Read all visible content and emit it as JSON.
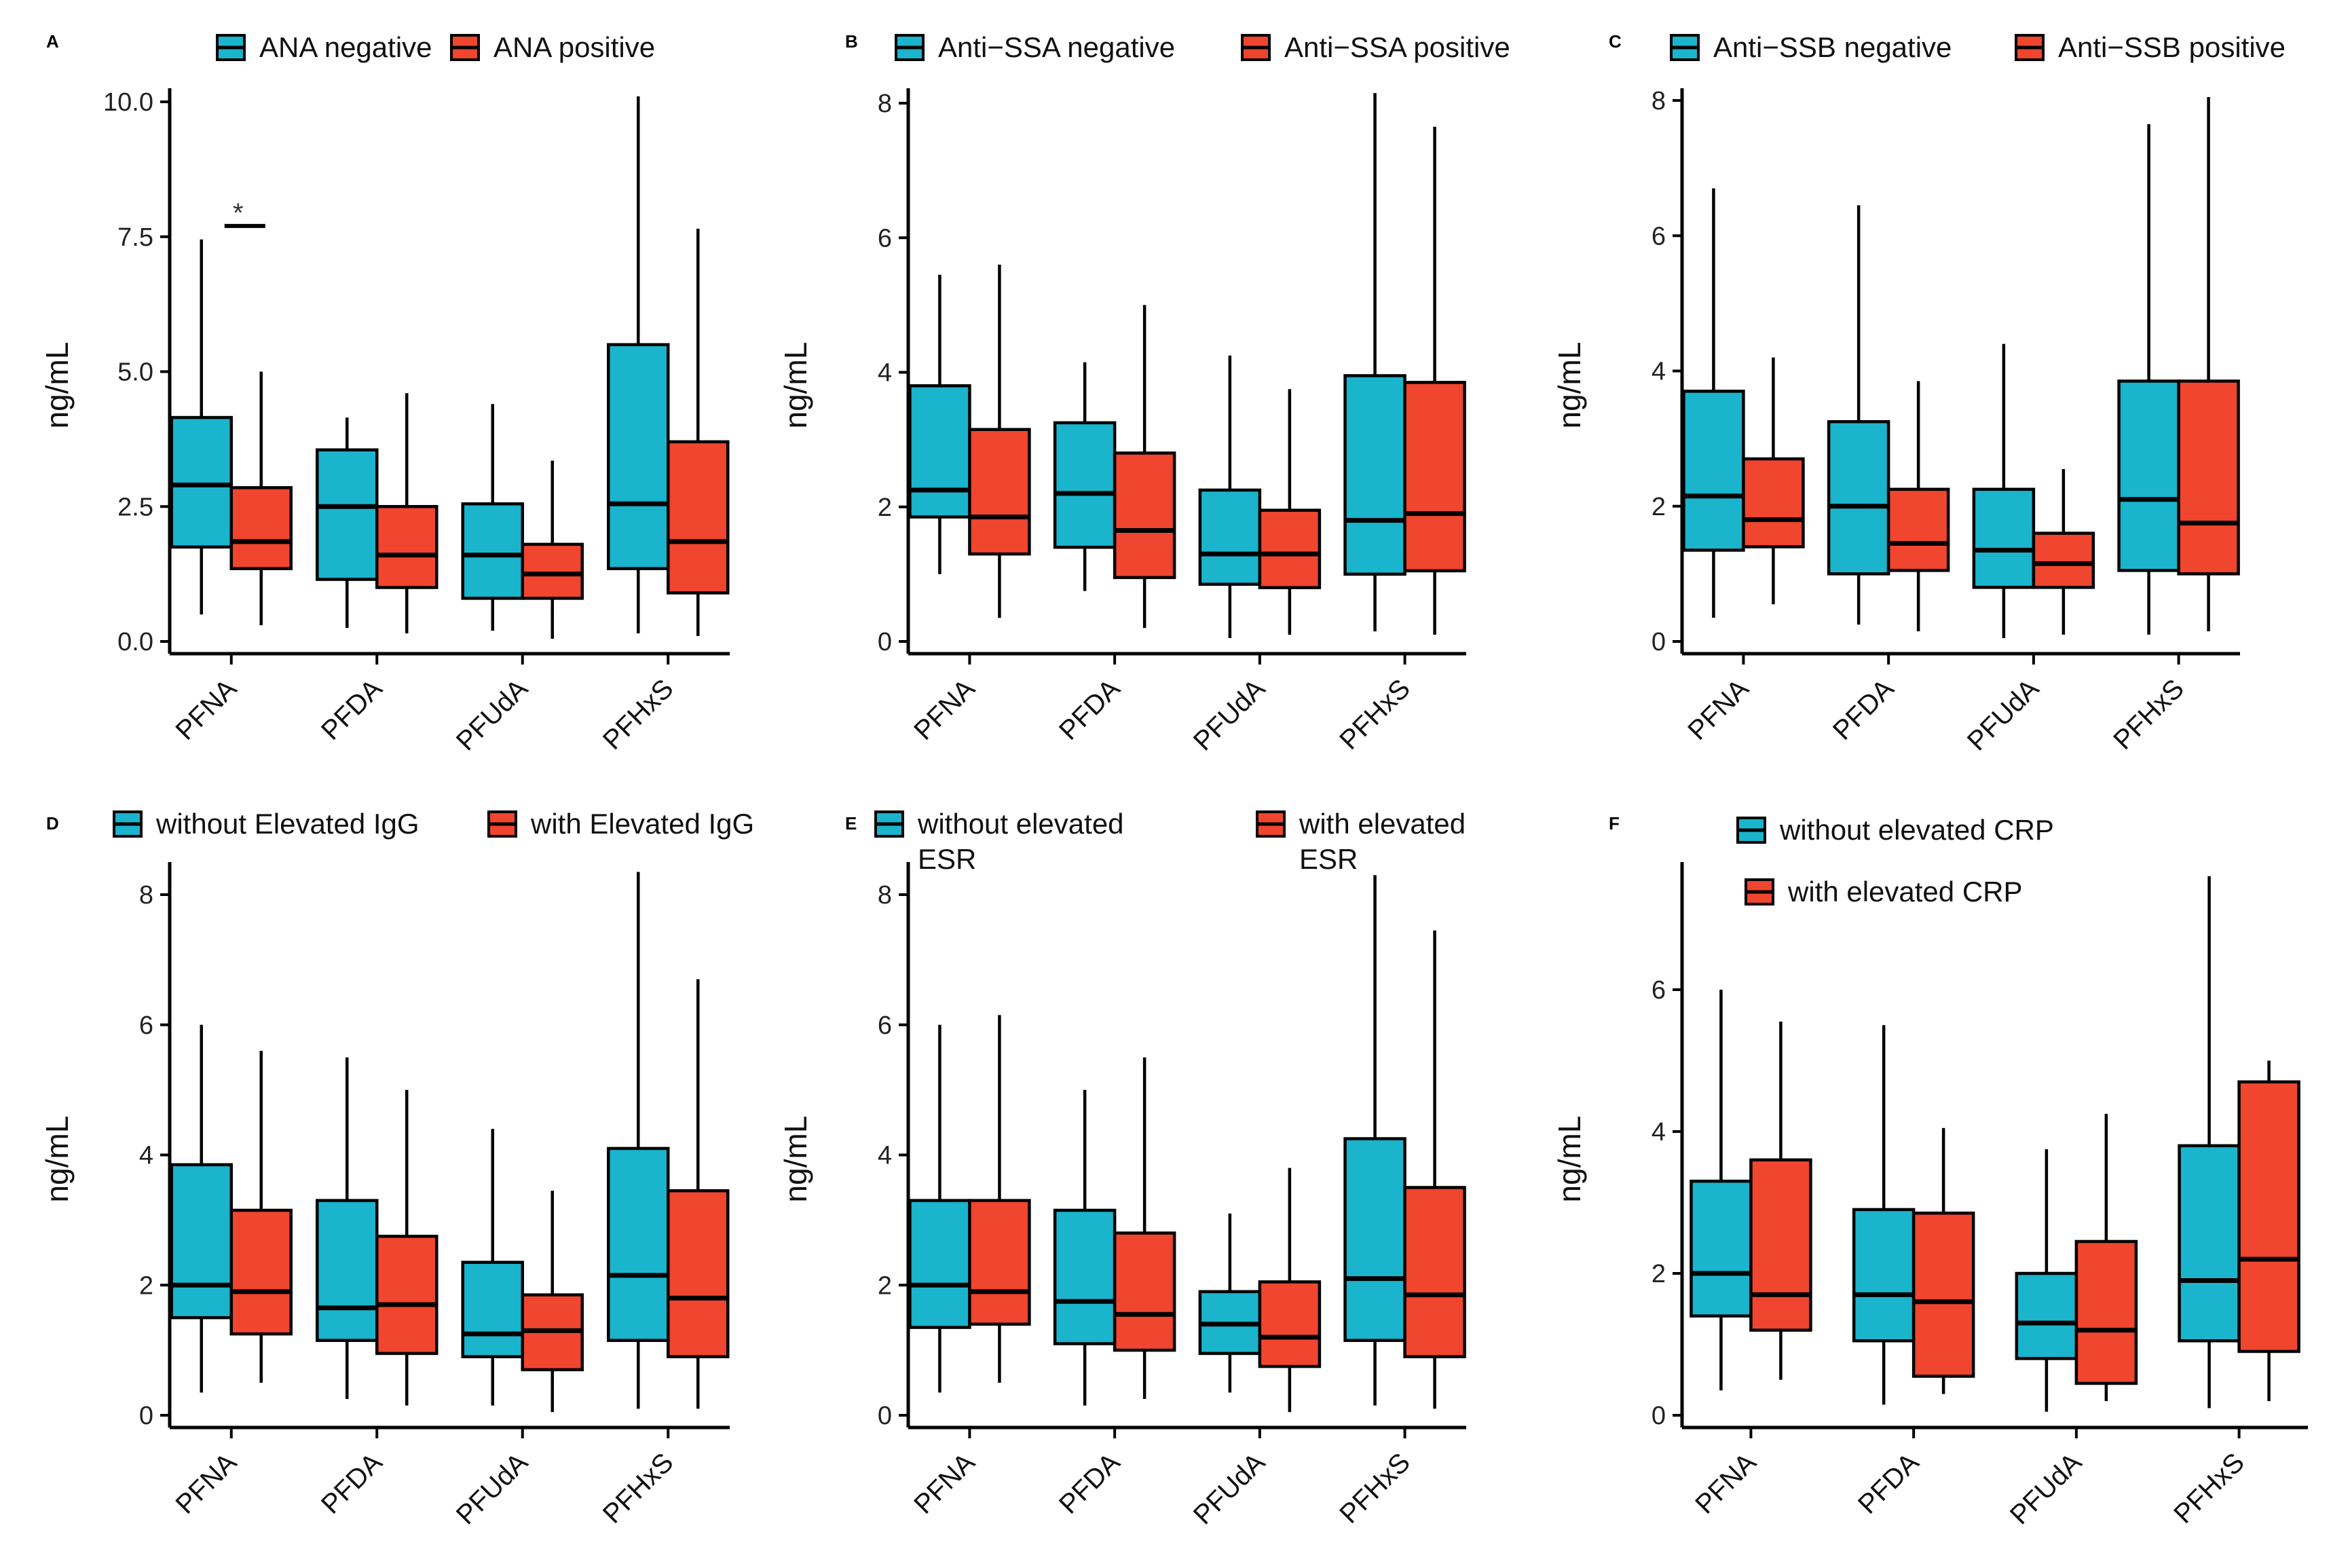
{
  "colors": {
    "negative": "#1ab4cc",
    "positive": "#f0452e"
  },
  "chart_data": [
    {
      "panel": "A",
      "type": "box",
      "ylabel": "ng/mL",
      "ylim": [
        0,
        10.5
      ],
      "yticks": [
        "0.0",
        "2.5",
        "5.0",
        "7.5",
        "10.0"
      ],
      "ytick_values": [
        0,
        2.5,
        5.0,
        7.5,
        10.0
      ],
      "categories": [
        "PFNA",
        "PFDA",
        "PFUdA",
        "PFHxS"
      ],
      "legend": [
        "ANA negative",
        "ANA positive"
      ],
      "legend_layout": "row",
      "significance": {
        "category": "PFNA",
        "label": "*",
        "value": 7.7
      },
      "series": [
        {
          "name": "ANA negative",
          "boxes": [
            {
              "min": 0.5,
              "q1": 1.75,
              "median": 2.9,
              "q3": 4.15,
              "max": 7.45
            },
            {
              "min": 0.25,
              "q1": 1.15,
              "median": 2.5,
              "q3": 3.55,
              "max": 4.15
            },
            {
              "min": 0.2,
              "q1": 0.8,
              "median": 1.6,
              "q3": 2.55,
              "max": 4.4
            },
            {
              "min": 0.15,
              "q1": 1.35,
              "median": 2.55,
              "q3": 5.5,
              "max": 10.1
            }
          ]
        },
        {
          "name": "ANA positive",
          "boxes": [
            {
              "min": 0.3,
              "q1": 1.35,
              "median": 1.85,
              "q3": 2.85,
              "max": 5.0
            },
            {
              "min": 0.15,
              "q1": 1.0,
              "median": 1.6,
              "q3": 2.5,
              "max": 4.6
            },
            {
              "min": 0.05,
              "q1": 0.8,
              "median": 1.25,
              "q3": 1.8,
              "max": 3.35
            },
            {
              "min": 0.1,
              "q1": 0.9,
              "median": 1.85,
              "q3": 3.7,
              "max": 7.65
            }
          ]
        }
      ]
    },
    {
      "panel": "B",
      "type": "box",
      "ylabel": "ng/mL",
      "ylim": [
        0,
        8.6
      ],
      "yticks": [
        "0",
        "2",
        "4",
        "6",
        "8"
      ],
      "ytick_values": [
        0,
        2,
        4,
        6,
        8
      ],
      "categories": [
        "PFNA",
        "PFDA",
        "PFUdA",
        "PFHxS"
      ],
      "legend": [
        "Anti−SSA negative",
        "Anti−SSA positive"
      ],
      "legend_layout": "row",
      "series": [
        {
          "name": "Anti−SSA negative",
          "boxes": [
            {
              "min": 1.0,
              "q1": 1.85,
              "median": 2.25,
              "q3": 3.8,
              "max": 5.45
            },
            {
              "min": 0.75,
              "q1": 1.4,
              "median": 2.2,
              "q3": 3.25,
              "max": 4.15
            },
            {
              "min": 0.05,
              "q1": 0.85,
              "median": 1.3,
              "q3": 2.25,
              "max": 4.25
            },
            {
              "min": 0.15,
              "q1": 1.0,
              "median": 1.8,
              "q3": 3.95,
              "max": 8.15
            }
          ]
        },
        {
          "name": "Anti−SSA positive",
          "boxes": [
            {
              "min": 0.35,
              "q1": 1.3,
              "median": 1.85,
              "q3": 3.15,
              "max": 5.6
            },
            {
              "min": 0.2,
              "q1": 0.95,
              "median": 1.65,
              "q3": 2.8,
              "max": 5.0
            },
            {
              "min": 0.1,
              "q1": 0.8,
              "median": 1.3,
              "q3": 1.95,
              "max": 3.75
            },
            {
              "min": 0.1,
              "q1": 1.05,
              "median": 1.9,
              "q3": 3.85,
              "max": 7.65
            }
          ]
        }
      ]
    },
    {
      "panel": "C",
      "type": "box",
      "ylabel": "ng/mL",
      "ylim": [
        0,
        8.4
      ],
      "yticks": [
        "0",
        "2",
        "4",
        "6",
        "8"
      ],
      "ytick_values": [
        0,
        2,
        4,
        6,
        8
      ],
      "categories": [
        "PFNA",
        "PFDA",
        "PFUdA",
        "PFHxS"
      ],
      "legend": [
        "Anti−SSB negative",
        "Anti−SSB positive"
      ],
      "legend_layout": "row",
      "series": [
        {
          "name": "Anti−SSB negative",
          "boxes": [
            {
              "min": 0.35,
              "q1": 1.35,
              "median": 2.15,
              "q3": 3.7,
              "max": 6.7
            },
            {
              "min": 0.25,
              "q1": 1.0,
              "median": 2.0,
              "q3": 3.25,
              "max": 6.45
            },
            {
              "min": 0.05,
              "q1": 0.8,
              "median": 1.35,
              "q3": 2.25,
              "max": 4.4
            },
            {
              "min": 0.1,
              "q1": 1.05,
              "median": 2.1,
              "q3": 3.85,
              "max": 7.65
            }
          ]
        },
        {
          "name": "Anti−SSB positive",
          "boxes": [
            {
              "min": 0.55,
              "q1": 1.4,
              "median": 1.8,
              "q3": 2.7,
              "max": 4.2
            },
            {
              "min": 0.15,
              "q1": 1.05,
              "median": 1.45,
              "q3": 2.25,
              "max": 3.85
            },
            {
              "min": 0.1,
              "q1": 0.8,
              "median": 1.15,
              "q3": 1.6,
              "max": 2.55
            },
            {
              "min": 0.15,
              "q1": 1.0,
              "median": 1.75,
              "q3": 3.85,
              "max": 8.05
            }
          ]
        }
      ]
    },
    {
      "panel": "D",
      "type": "box",
      "ylabel": "ng/mL",
      "ylim": [
        0,
        8.6
      ],
      "yticks": [
        "0",
        "2",
        "4",
        "6",
        "8"
      ],
      "ytick_values": [
        0,
        2,
        4,
        6,
        8
      ],
      "categories": [
        "PFNA",
        "PFDA",
        "PFUdA",
        "PFHxS"
      ],
      "legend": [
        "without Elevated IgG",
        "with Elevated IgG"
      ],
      "legend_layout": "row",
      "series": [
        {
          "name": "without Elevated IgG",
          "boxes": [
            {
              "min": 0.35,
              "q1": 1.5,
              "median": 2.0,
              "q3": 3.85,
              "max": 6.0
            },
            {
              "min": 0.25,
              "q1": 1.15,
              "median": 1.65,
              "q3": 3.3,
              "max": 5.5
            },
            {
              "min": 0.15,
              "q1": 0.9,
              "median": 1.25,
              "q3": 2.35,
              "max": 4.4
            },
            {
              "min": 0.1,
              "q1": 1.15,
              "median": 2.15,
              "q3": 4.1,
              "max": 8.35
            }
          ]
        },
        {
          "name": "with Elevated IgG",
          "boxes": [
            {
              "min": 0.5,
              "q1": 1.25,
              "median": 1.9,
              "q3": 3.15,
              "max": 5.6
            },
            {
              "min": 0.15,
              "q1": 0.95,
              "median": 1.7,
              "q3": 2.75,
              "max": 5.0
            },
            {
              "min": 0.05,
              "q1": 0.7,
              "median": 1.3,
              "q3": 1.85,
              "max": 3.45
            },
            {
              "min": 0.1,
              "q1": 0.9,
              "median": 1.8,
              "q3": 3.45,
              "max": 6.7
            }
          ]
        }
      ]
    },
    {
      "panel": "E",
      "type": "box",
      "ylabel": "ng/mL",
      "ylim": [
        0,
        8.6
      ],
      "yticks": [
        "0",
        "2",
        "4",
        "6",
        "8"
      ],
      "ytick_values": [
        0,
        2,
        4,
        6,
        8
      ],
      "categories": [
        "PFNA",
        "PFDA",
        "PFUdA",
        "PFHxS"
      ],
      "legend": [
        "without elevated ESR",
        "with elevated ESR"
      ],
      "legend_layout": "wrapped",
      "series": [
        {
          "name": "without elevated ESR",
          "boxes": [
            {
              "min": 0.35,
              "q1": 1.35,
              "median": 2.0,
              "q3": 3.3,
              "max": 6.0
            },
            {
              "min": 0.15,
              "q1": 1.1,
              "median": 1.75,
              "q3": 3.15,
              "max": 5.0
            },
            {
              "min": 0.35,
              "q1": 0.95,
              "median": 1.4,
              "q3": 1.9,
              "max": 3.1
            },
            {
              "min": 0.15,
              "q1": 1.15,
              "median": 2.1,
              "q3": 4.25,
              "max": 8.3
            }
          ]
        },
        {
          "name": "with elevated ESR",
          "boxes": [
            {
              "min": 0.5,
              "q1": 1.4,
              "median": 1.9,
              "q3": 3.3,
              "max": 6.15
            },
            {
              "min": 0.25,
              "q1": 1.0,
              "median": 1.55,
              "q3": 2.8,
              "max": 5.5
            },
            {
              "min": 0.05,
              "q1": 0.75,
              "median": 1.2,
              "q3": 2.05,
              "max": 3.8
            },
            {
              "min": 0.1,
              "q1": 0.9,
              "median": 1.85,
              "q3": 3.5,
              "max": 7.45
            }
          ]
        }
      ]
    },
    {
      "panel": "F",
      "type": "box",
      "ylabel": "ng/mL",
      "ylim": [
        0,
        7.8
      ],
      "yticks": [
        "0",
        "2",
        "4",
        "6"
      ],
      "ytick_values": [
        0,
        2,
        4,
        6
      ],
      "categories": [
        "PFNA",
        "PFDA",
        "PFUdA",
        "PFHxS"
      ],
      "legend": [
        "without elevated CRP",
        "with elevated CRP"
      ],
      "legend_layout": "column",
      "series": [
        {
          "name": "without elevated CRP",
          "boxes": [
            {
              "min": 0.35,
              "q1": 1.4,
              "median": 2.0,
              "q3": 3.3,
              "max": 6.0
            },
            {
              "min": 0.15,
              "q1": 1.05,
              "median": 1.7,
              "q3": 2.9,
              "max": 5.5
            },
            {
              "min": 0.05,
              "q1": 0.8,
              "median": 1.3,
              "q3": 2.0,
              "max": 3.75
            },
            {
              "min": 0.1,
              "q1": 1.05,
              "median": 1.9,
              "q3": 3.8,
              "max": 7.6
            }
          ]
        },
        {
          "name": "with elevated CRP",
          "boxes": [
            {
              "min": 0.5,
              "q1": 1.2,
              "median": 1.7,
              "q3": 3.6,
              "max": 5.55
            },
            {
              "min": 0.3,
              "q1": 0.55,
              "median": 1.6,
              "q3": 2.85,
              "max": 4.05
            },
            {
              "min": 0.2,
              "q1": 0.45,
              "median": 1.2,
              "q3": 2.45,
              "max": 4.25
            },
            {
              "min": 0.2,
              "q1": 0.9,
              "median": 2.2,
              "q3": 4.7,
              "max": 5.0
            }
          ]
        }
      ]
    }
  ]
}
